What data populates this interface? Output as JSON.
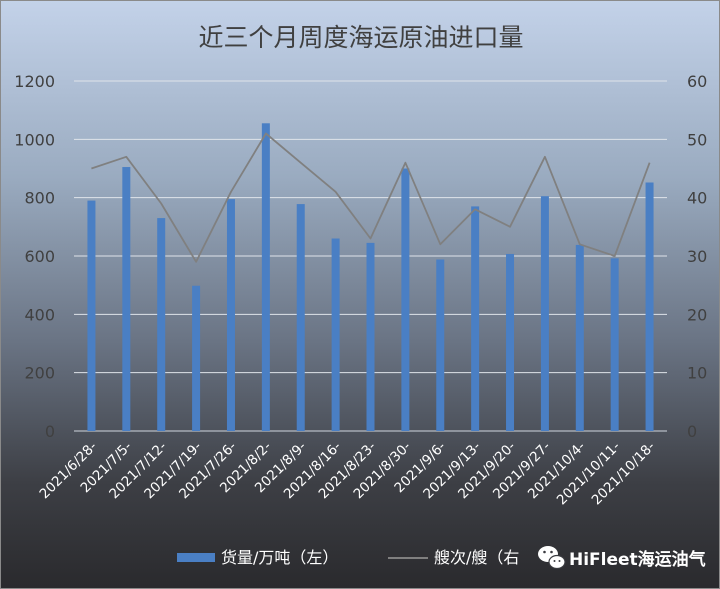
{
  "chart_data": {
    "type": "bar+line",
    "title": "近三个月周度海运原油进口量",
    "categories": [
      "2021/6/28-",
      "2021/7/5-",
      "2021/7/12-",
      "2021/7/19-",
      "2021/7/26-",
      "2021/8/2-",
      "2021/8/9-",
      "2021/8/16-",
      "2021/8/23-",
      "2021/8/30-",
      "2021/9/6-",
      "2021/9/13-",
      "2021/9/20-",
      "2021/9/27-",
      "2021/10/4-",
      "2021/10/11-",
      "2021/10/18-"
    ],
    "series": [
      {
        "name": "货量/万吨（左）",
        "type": "bar",
        "axis": "left",
        "color": "#4a7fc4",
        "values": [
          790,
          905,
          730,
          498,
          795,
          1055,
          778,
          660,
          645,
          900,
          588,
          770,
          607,
          805,
          638,
          592,
          852
        ]
      },
      {
        "name": "艘次/艘（右）",
        "type": "line",
        "axis": "right",
        "color": "#808080",
        "values": [
          45,
          47,
          39,
          29,
          41,
          51,
          46,
          41,
          33,
          46,
          32,
          38,
          35,
          47,
          32,
          30,
          46
        ]
      }
    ],
    "y_left": {
      "min": 0,
      "max": 1200,
      "ticks": [
        "0",
        "200",
        "400",
        "600",
        "800",
        "1000",
        "1200"
      ]
    },
    "y_right": {
      "min": 0,
      "max": 60,
      "ticks": [
        "0",
        "10",
        "20",
        "30",
        "40",
        "50",
        "60"
      ]
    },
    "grid": true,
    "legend_position": "bottom"
  },
  "legend": {
    "bar_label": "货量/万吨（左）",
    "line_label": "艘次/艘（右"
  },
  "watermark": {
    "icon": "wechat-icon",
    "text": "HiFleet海运油气"
  }
}
